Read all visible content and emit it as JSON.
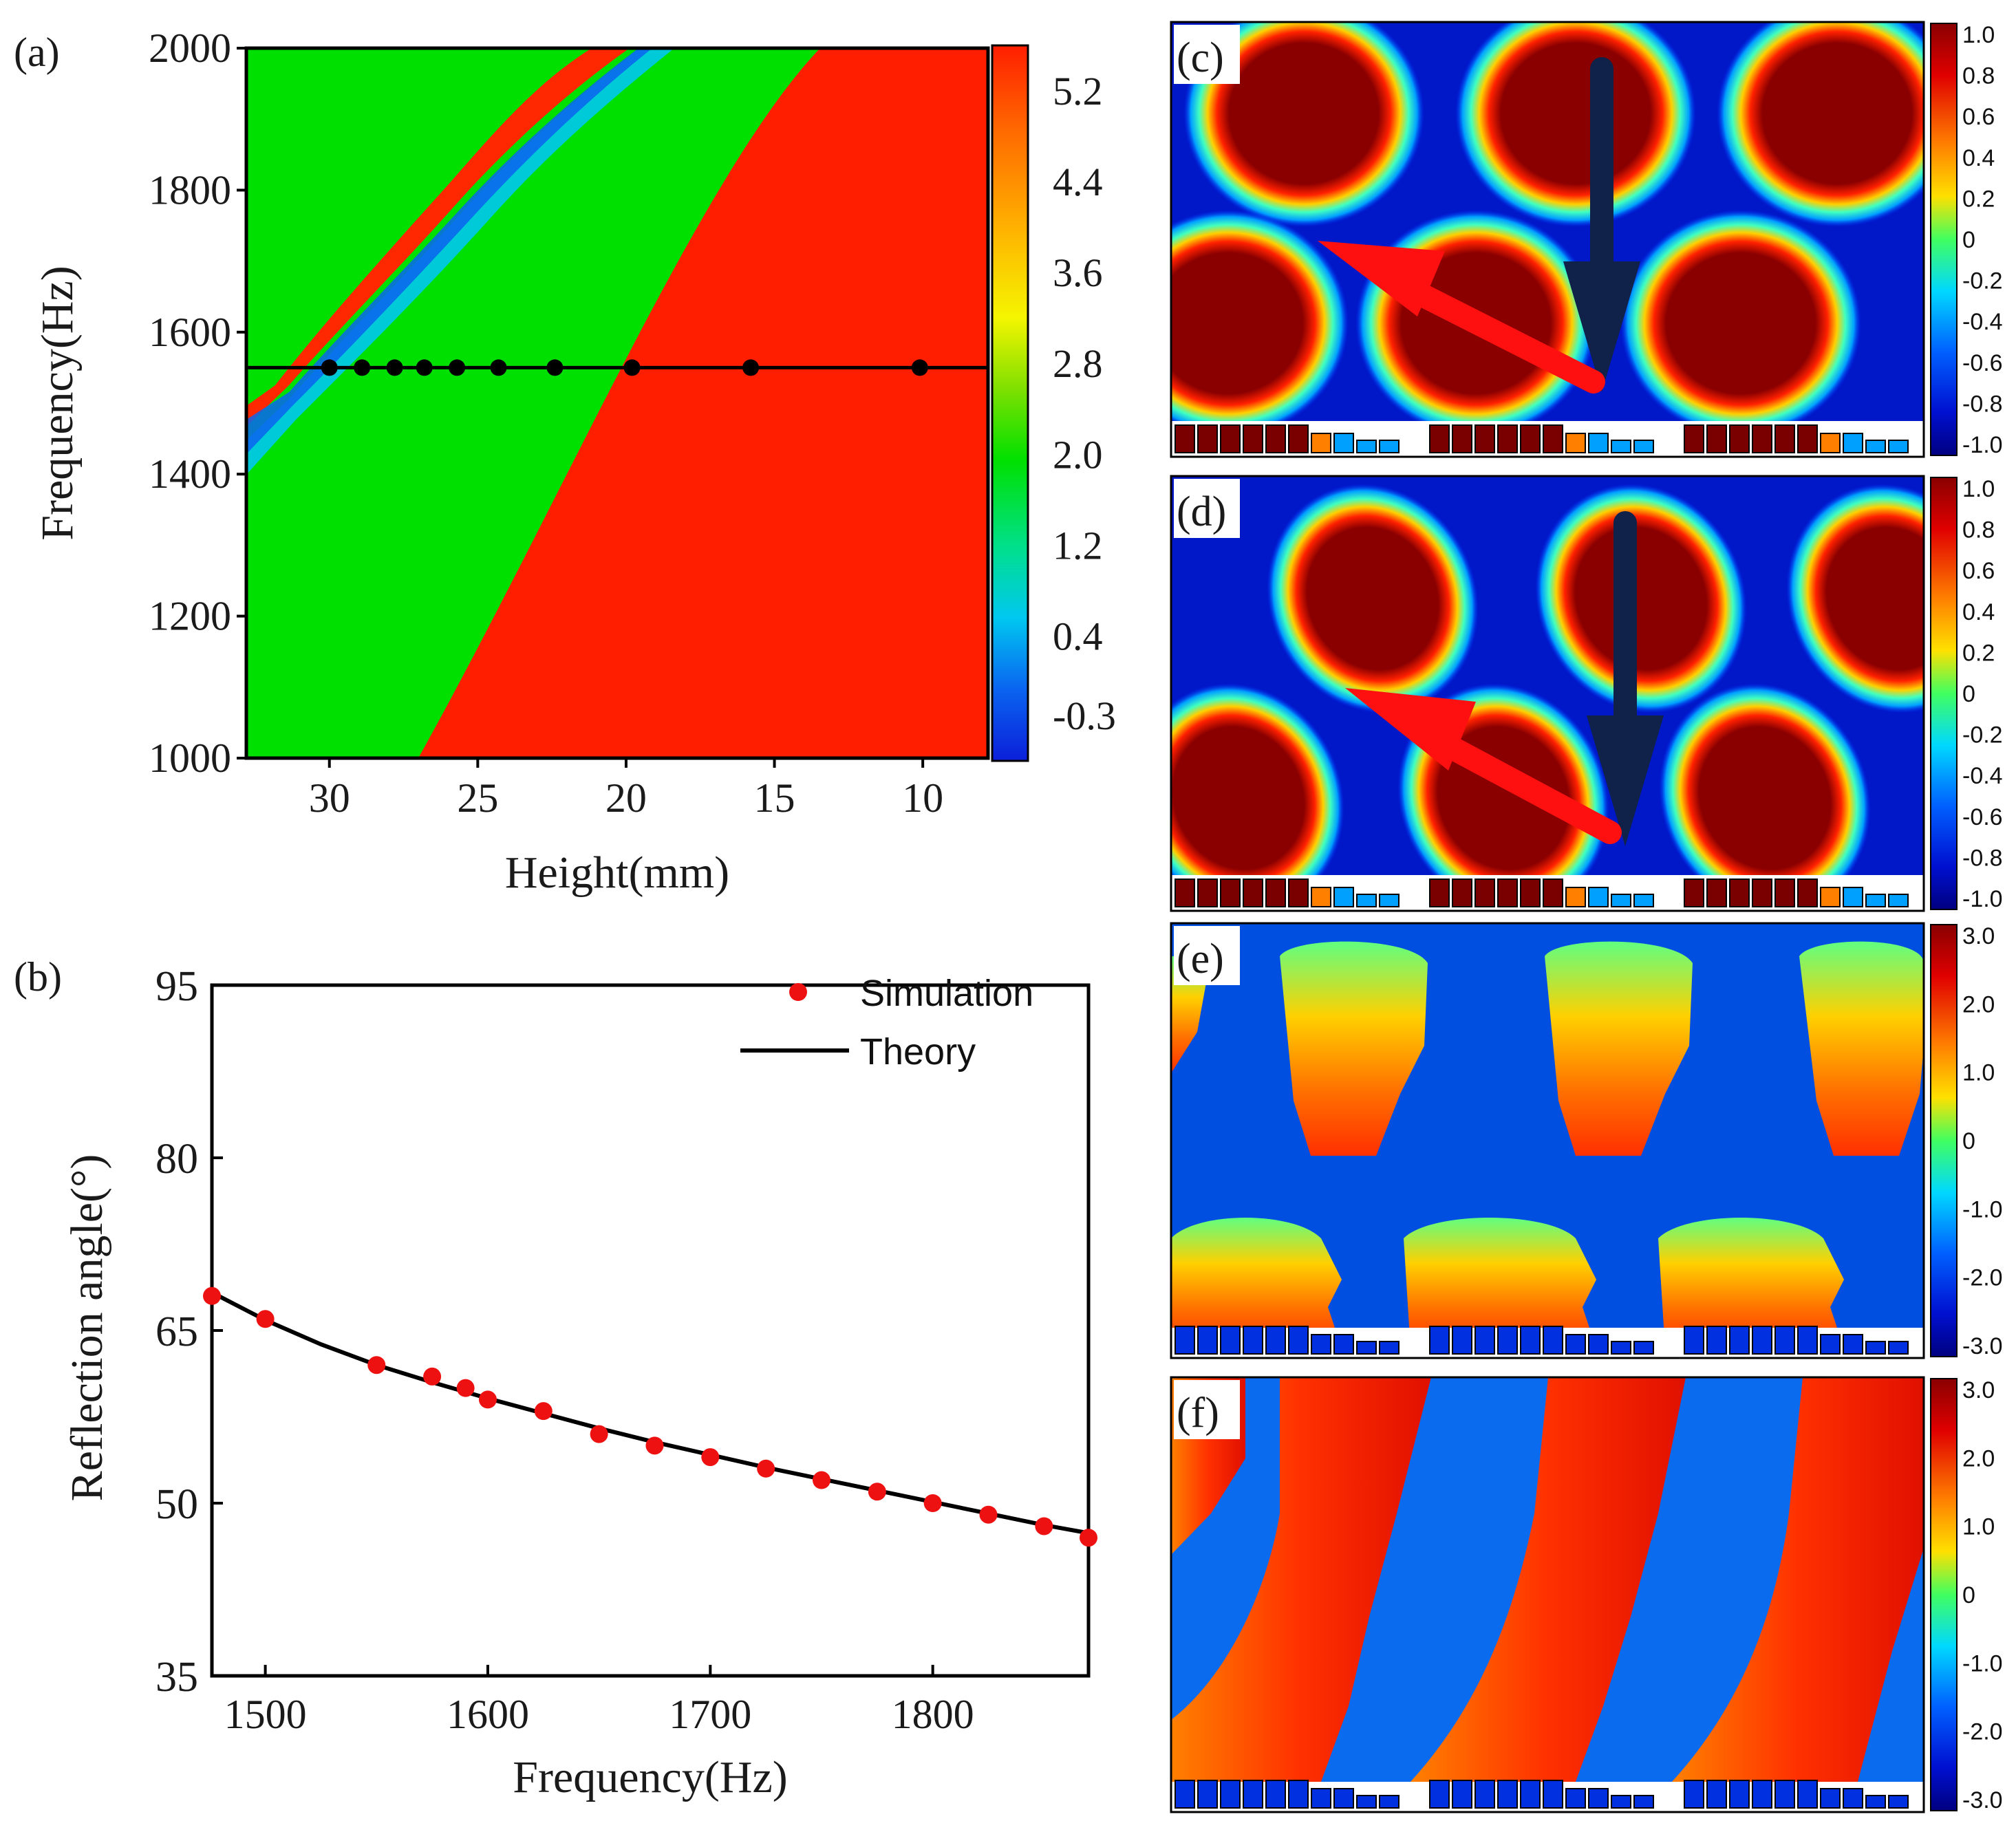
{
  "chart_data": [
    {
      "panel": "(a)",
      "type": "heatmap",
      "xlabel": "Height(mm)",
      "ylabel": "Frequency(Hz)",
      "x_ticks": [
        "30",
        "25",
        "20",
        "15",
        "10"
      ],
      "x_tick_values": [
        30,
        25,
        20,
        15,
        10
      ],
      "xlim": [
        32.8,
        7.8
      ],
      "y_ticks": [
        "1000",
        "1200",
        "1400",
        "1600",
        "1800",
        "2000"
      ],
      "y_tick_values": [
        1000,
        1200,
        1400,
        1600,
        1800,
        2000
      ],
      "ylim": [
        1000,
        2000
      ],
      "colorbar_ticks": [
        "5.2",
        "4.4",
        "3.6",
        "2.8",
        "2.0",
        "1.2",
        "0.4",
        "-0.3"
      ],
      "colorbar_values": [
        5.2,
        4.4,
        3.6,
        2.8,
        2.0,
        1.2,
        0.4,
        -0.3
      ],
      "colorbar_range": [
        -0.7,
        5.6
      ],
      "line_frequency": 1550,
      "points": [
        {
          "x": 30.0,
          "y": 1550
        },
        {
          "x": 28.9,
          "y": 1550
        },
        {
          "x": 27.8,
          "y": 1550
        },
        {
          "x": 26.8,
          "y": 1550
        },
        {
          "x": 25.7,
          "y": 1550
        },
        {
          "x": 24.3,
          "y": 1550
        },
        {
          "x": 22.4,
          "y": 1550
        },
        {
          "x": 19.8,
          "y": 1550
        },
        {
          "x": 15.8,
          "y": 1550
        },
        {
          "x": 10.1,
          "y": 1550
        }
      ],
      "colormap": [
        "#0b1fd9",
        "#0a64f0",
        "#00c8f0",
        "#00e08a",
        "#00e000",
        "#7fe000",
        "#f5f500",
        "#ffb400",
        "#ff6a00",
        "#ff1e00"
      ]
    },
    {
      "panel": "(b)",
      "type": "scatter",
      "xlabel": "Frequency(Hz)",
      "ylabel": "Reflection angle(°)",
      "x_ticks": [
        "1500",
        "1600",
        "1700",
        "1800"
      ],
      "x_tick_values": [
        1500,
        1600,
        1700,
        1800
      ],
      "xlim": [
        1476,
        1870
      ],
      "y_ticks": [
        "35",
        "50",
        "65",
        "80",
        "95"
      ],
      "y_tick_values": [
        35,
        50,
        65,
        80,
        95
      ],
      "ylim": [
        35,
        95
      ],
      "series": [
        {
          "name": "Simulation",
          "color": "#ee1111",
          "marker": "circle",
          "x": [
            1476,
            1500,
            1550,
            1575,
            1590,
            1600,
            1625,
            1650,
            1675,
            1700,
            1725,
            1750,
            1775,
            1800,
            1825,
            1850,
            1870
          ],
          "y": [
            68,
            66,
            62,
            61,
            60,
            59,
            58,
            56,
            55,
            54,
            53,
            52,
            51,
            50,
            49,
            48,
            47
          ]
        },
        {
          "name": "Theory",
          "color": "#000000",
          "marker": "line",
          "x": [
            1476,
            1500,
            1525,
            1550,
            1575,
            1600,
            1625,
            1650,
            1675,
            1700,
            1725,
            1750,
            1775,
            1800,
            1825,
            1850,
            1870
          ],
          "y": [
            68.3,
            65.9,
            63.8,
            62.0,
            60.5,
            59.1,
            57.8,
            56.5,
            55.3,
            54.2,
            53.1,
            52.1,
            51.1,
            50.1,
            49.1,
            48.1,
            47.4
          ]
        }
      ],
      "legend_position": "top-right"
    },
    {
      "panel": "(c)",
      "type": "heatmap",
      "colorbar_ticks": [
        "1.0",
        "0.8",
        "0.6",
        "0.4",
        "0.2",
        "0",
        "-0.2",
        "-0.4",
        "-0.6",
        "-0.8",
        "-1.0"
      ],
      "colorbar_values": [
        1.0,
        0.8,
        0.6,
        0.4,
        0.2,
        0,
        -0.2,
        -0.4,
        -0.6,
        -0.8,
        -1.0
      ],
      "field": "standing-circles"
    },
    {
      "panel": "(d)",
      "type": "heatmap",
      "colorbar_ticks": [
        "1.0",
        "0.8",
        "0.6",
        "0.4",
        "0.2",
        "0",
        "-0.2",
        "-0.4",
        "-0.6",
        "-0.8",
        "-1.0"
      ],
      "colorbar_values": [
        1.0,
        0.8,
        0.6,
        0.4,
        0.2,
        0,
        -0.2,
        -0.4,
        -0.6,
        -0.8,
        -1.0
      ],
      "field": "tilted-ellipses"
    },
    {
      "panel": "(e)",
      "type": "heatmap",
      "colorbar_ticks": [
        "3.0",
        "2.0",
        "1.0",
        "0",
        "-1.0",
        "-2.0",
        "-3.0"
      ],
      "colorbar_values": [
        3.0,
        2.0,
        1.0,
        0,
        -1.0,
        -2.0,
        -3.0
      ],
      "field": "phase-blobs"
    },
    {
      "panel": "(f)",
      "type": "heatmap",
      "colorbar_ticks": [
        "3.0",
        "2.0",
        "1.0",
        "0",
        "-1.0",
        "-2.0",
        "-3.0"
      ],
      "colorbar_values": [
        3.0,
        2.0,
        1.0,
        0,
        -1.0,
        -2.0,
        -3.0
      ],
      "field": "phase-diagonal"
    }
  ]
}
